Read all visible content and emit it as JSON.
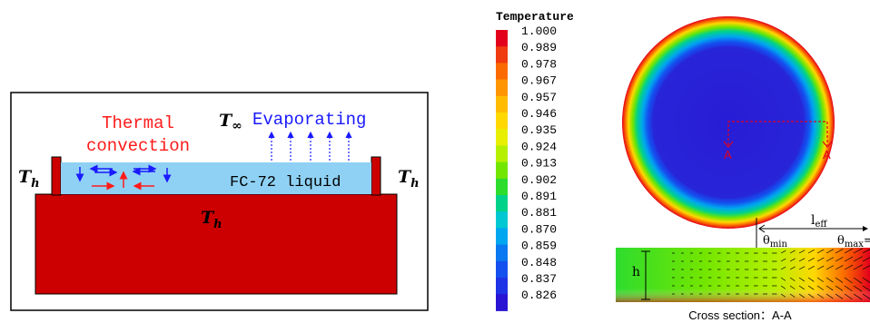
{
  "left_panel": {
    "thermal_convection": [
      "Thermal",
      "convection"
    ],
    "evaporating": "Evaporating",
    "t_inf": {
      "base": "T",
      "sub": "∞"
    },
    "t_h": {
      "base": "T",
      "sub": "h"
    },
    "liquid_label": "FC-72 liquid",
    "colors": {
      "heater": "#cc0000",
      "liquid": "#8fd1f4",
      "red_text": "#ff1a1a",
      "blue_text": "#1a1aff"
    }
  },
  "right_panel": {
    "legend_title": "Temperature",
    "legend_values": [
      "1.000",
      "0.989",
      "0.978",
      "0.967",
      "0.957",
      "0.946",
      "0.935",
      "0.924",
      "0.913",
      "0.902",
      "0.891",
      "0.881",
      "0.870",
      "0.859",
      "0.848",
      "0.837",
      "0.826"
    ],
    "legend_colors": [
      "#e3001b",
      "#f03a10",
      "#fb6a00",
      "#ff9500",
      "#ffbb00",
      "#ffd800",
      "#e8ef00",
      "#b5f000",
      "#73e600",
      "#2edc2e",
      "#00d28a",
      "#00c8d2",
      "#00a6f0",
      "#0a78f0",
      "#1450f0",
      "#1e32e6",
      "#2814d2"
    ],
    "marker_a": "A",
    "h_label": "h",
    "l_eff": {
      "base": "l",
      "sub": "eff"
    },
    "theta_min": {
      "base": "θ",
      "sub": "min"
    },
    "theta_max": {
      "base": "θ",
      "sub": "max",
      "tail": "="
    },
    "cross_section_caption": "Cross section：A-A"
  }
}
